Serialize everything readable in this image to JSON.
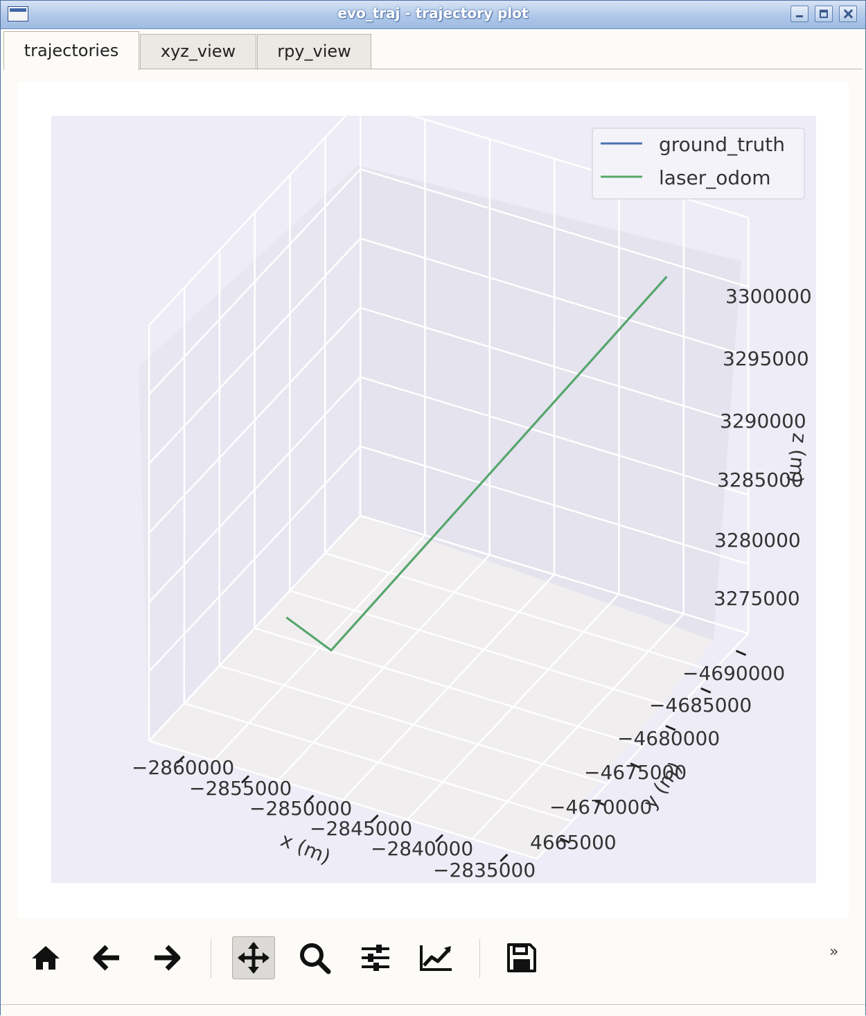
{
  "window": {
    "title": "evo_traj - trajectory plot"
  },
  "tabs": [
    {
      "label": "trajectories",
      "active": true
    },
    {
      "label": "xyz_view",
      "active": false
    },
    {
      "label": "rpy_view",
      "active": false
    }
  ],
  "toolbar": {
    "buttons": [
      {
        "name": "home",
        "icon": "home-icon"
      },
      {
        "name": "back",
        "icon": "arrow-left-icon"
      },
      {
        "name": "forward",
        "icon": "arrow-right-icon"
      },
      {
        "name": "pan",
        "icon": "move-icon",
        "checked": true
      },
      {
        "name": "zoom",
        "icon": "magnifier-icon"
      },
      {
        "name": "subplots",
        "icon": "sliders-icon"
      },
      {
        "name": "axes",
        "icon": "line-chart-icon"
      },
      {
        "name": "save",
        "icon": "floppy-disk-icon"
      }
    ],
    "overflow_label": "»"
  },
  "chart_data": {
    "type": "line",
    "projection": "3d",
    "grid": true,
    "legend_position": "top-right",
    "legend": [
      "ground_truth",
      "laser_odom"
    ],
    "series": [
      {
        "name": "ground_truth",
        "color": "#4c72b0",
        "x": [
          -2856500,
          -2852500,
          -2838000
        ],
        "y": [
          4671000,
          4670000,
          4691000
        ],
        "z": [
          3278500,
          3277800,
          3297500
        ]
      },
      {
        "name": "laser_odom",
        "color": "#55a868",
        "x": [
          -2856500,
          -2852500,
          -2838000
        ],
        "y": [
          4671000,
          4670000,
          4691000
        ],
        "z": [
          3278500,
          3277800,
          3297500
        ]
      }
    ],
    "x_axis": {
      "label": "x (m)",
      "ticks": [
        "−2860000",
        "−2855000",
        "−2850000",
        "−2845000",
        "−2840000",
        "−2835000"
      ]
    },
    "y_axis": {
      "label": "y (m)",
      "ticks": [
        "4665000",
        "−4670000",
        "−4675000",
        "−4680000",
        "−4685000",
        "−4690000"
      ]
    },
    "z_axis": {
      "label": "z (m)",
      "ticks": [
        "3275000",
        "3280000",
        "3285000",
        "3290000",
        "3295000",
        "3300000"
      ]
    }
  }
}
